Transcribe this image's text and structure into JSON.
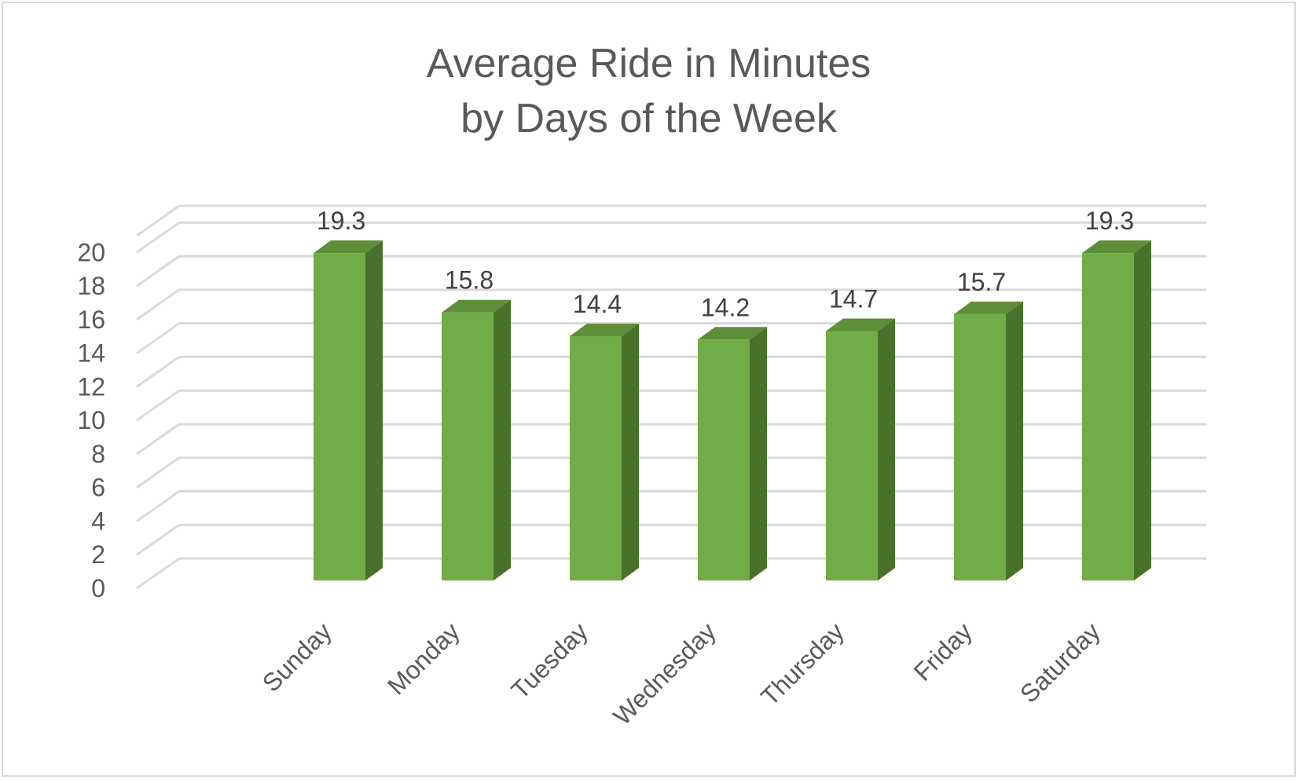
{
  "chart_data": {
    "type": "bar",
    "title_lines": [
      "Average Ride in Minutes",
      "by Days of the Week"
    ],
    "categories": [
      "Sunday",
      "Monday",
      "Tuesday",
      "Wednesday",
      "Thursday",
      "Friday",
      "Saturday"
    ],
    "values": [
      19.3,
      15.8,
      14.4,
      14.2,
      14.7,
      15.7,
      19.3
    ],
    "data_labels": [
      "19.3",
      "15.8",
      "14.4",
      "14.2",
      "14.7",
      "15.7",
      "19.3"
    ],
    "ylim": [
      0,
      20
    ],
    "yticks": [
      0,
      2,
      4,
      6,
      8,
      10,
      12,
      14,
      16,
      18,
      20
    ],
    "grid": true,
    "style": "3d-column",
    "bar_color": "#70ad47",
    "bar_side_color": "#4a7129",
    "bar_top_color": "#5d8f3a",
    "grid_color": "#d9d9d9"
  }
}
